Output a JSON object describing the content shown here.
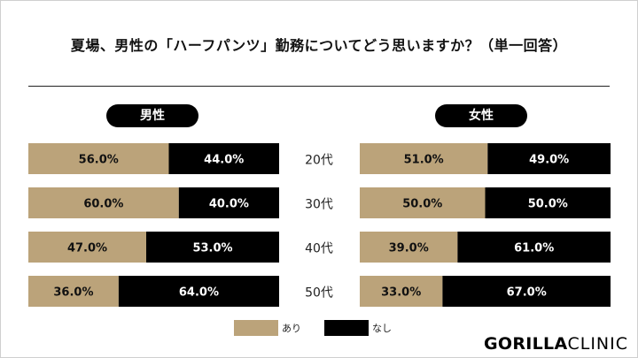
{
  "title": "夏場、男性の「ハーフパンツ」勤務についてどう思いますか？（単一回答）",
  "groups": {
    "male": "男性",
    "female": "女性"
  },
  "legend": [
    {
      "label": "あり",
      "color": "#bba37a"
    },
    {
      "label": "なし",
      "color": "#000000"
    }
  ],
  "logo": {
    "bold": "GORILLA",
    "thin": "CLINIC"
  },
  "chart_data": {
    "type": "bar",
    "stacked": true,
    "orientation": "horizontal",
    "categories": [
      "20代",
      "30代",
      "40代",
      "50代"
    ],
    "panels": [
      {
        "name": "男性",
        "series": [
          {
            "name": "あり",
            "values": [
              56.0,
              60.0,
              47.0,
              36.0
            ]
          },
          {
            "name": "なし",
            "values": [
              44.0,
              40.0,
              53.0,
              64.0
            ]
          }
        ]
      },
      {
        "name": "女性",
        "series": [
          {
            "name": "あり",
            "values": [
              51.0,
              50.0,
              39.0,
              33.0
            ]
          },
          {
            "name": "なし",
            "values": [
              49.0,
              50.0,
              61.0,
              67.0
            ]
          }
        ]
      }
    ],
    "value_format": "%",
    "xlim": [
      0,
      100
    ],
    "grid": false,
    "legend_position": "bottom"
  }
}
